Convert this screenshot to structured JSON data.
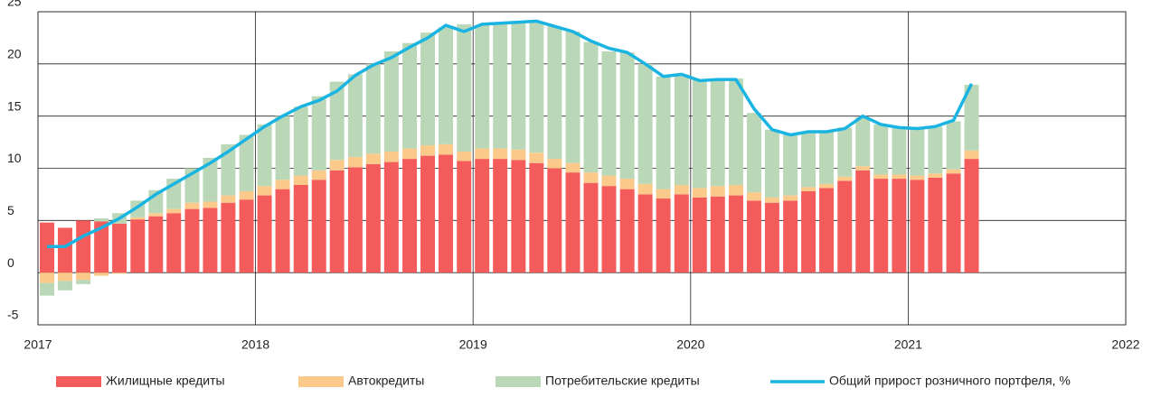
{
  "chart_data": {
    "type": "bar",
    "stacked": true,
    "grid": true,
    "xlim": [
      2017,
      2022
    ],
    "xticks": [
      2017,
      2018,
      2019,
      2020,
      2021,
      2022
    ],
    "ylim": [
      -5,
      25
    ],
    "yticks": [
      -5,
      0,
      5,
      10,
      15,
      20,
      25
    ],
    "x": [
      2017,
      2017.083,
      2017.167,
      2017.25,
      2017.333,
      2017.417,
      2017.5,
      2017.583,
      2017.667,
      2017.75,
      2017.833,
      2017.917,
      2018,
      2018.083,
      2018.167,
      2018.25,
      2018.333,
      2018.417,
      2018.5,
      2018.583,
      2018.667,
      2018.75,
      2018.833,
      2018.917,
      2019,
      2019.083,
      2019.167,
      2019.25,
      2019.333,
      2019.417,
      2019.5,
      2019.583,
      2019.667,
      2019.75,
      2019.833,
      2019.917,
      2020,
      2020.083,
      2020.167,
      2020.25,
      2020.333,
      2020.417,
      2020.5,
      2020.583,
      2020.667,
      2020.75,
      2020.833,
      2020.917,
      2021,
      2021.083,
      2021.167,
      2021.25
    ],
    "series": [
      {
        "name": "Жилищные кредиты",
        "color": "#f45b5b",
        "values": [
          4.8,
          4.3,
          5.0,
          4.9,
          4.7,
          5.1,
          5.4,
          5.7,
          6.1,
          6.2,
          6.7,
          7.0,
          7.4,
          8.0,
          8.4,
          8.9,
          9.8,
          10.1,
          10.4,
          10.6,
          10.9,
          11.2,
          11.3,
          10.7,
          10.9,
          10.9,
          10.8,
          10.5,
          10.0,
          9.6,
          8.6,
          8.3,
          8.0,
          7.5,
          7.1,
          7.5,
          7.2,
          7.3,
          7.4,
          6.9,
          6.7,
          6.9,
          7.8,
          8.1,
          8.8,
          9.8,
          9.0,
          9.0,
          8.9,
          9.1,
          9.5,
          10.9
        ]
      },
      {
        "name": "Автокредиты",
        "color": "#fbca8b",
        "values": [
          -1.0,
          -0.8,
          -0.7,
          -0.3,
          -0.1,
          0.2,
          0.3,
          0.4,
          0.6,
          0.6,
          0.7,
          0.8,
          0.9,
          0.9,
          0.9,
          0.9,
          1.0,
          1.0,
          1.0,
          1.0,
          1.0,
          1.0,
          1.0,
          0.9,
          1.0,
          1.0,
          1.0,
          1.0,
          0.9,
          0.9,
          1.0,
          1.0,
          1.0,
          1.0,
          0.9,
          0.9,
          0.9,
          1.0,
          1.0,
          0.8,
          0.5,
          0.5,
          0.4,
          0.4,
          0.4,
          0.4,
          0.4,
          0.4,
          0.4,
          0.4,
          0.4,
          0.8
        ]
      },
      {
        "name": "Потребительские кредиты",
        "color": "#bad8b8",
        "values": [
          -1.2,
          -0.9,
          -0.4,
          0.3,
          1.0,
          1.6,
          2.2,
          2.9,
          3.3,
          4.2,
          4.9,
          5.4,
          5.9,
          6.1,
          6.6,
          7.1,
          7.5,
          7.9,
          8.6,
          9.6,
          10.1,
          10.8,
          11.2,
          12.2,
          11.8,
          12.0,
          12.1,
          12.5,
          12.7,
          12.6,
          12.5,
          11.9,
          12.1,
          11.5,
          10.8,
          10.6,
          10.4,
          10.2,
          10.2,
          7.6,
          6.5,
          5.9,
          5.2,
          5.0,
          4.7,
          4.7,
          4.8,
          4.5,
          4.5,
          4.5,
          4.6,
          6.3
        ]
      },
      {
        "name": "Общий прирост розничного портфеля, %",
        "color": "#1ab4e3",
        "type": "line",
        "values": [
          2.5,
          2.5,
          3.5,
          4.3,
          5.2,
          6.3,
          7.5,
          8.5,
          9.5,
          10.5,
          11.6,
          12.8,
          14.0,
          15.0,
          15.9,
          16.5,
          17.4,
          18.9,
          19.9,
          20.6,
          21.6,
          22.5,
          23.7,
          23.1,
          23.8,
          23.9,
          24.0,
          24.1,
          23.6,
          23.1,
          22.2,
          21.5,
          21.1,
          20.0,
          18.8,
          19.0,
          18.4,
          18.5,
          18.5,
          15.7,
          13.7,
          13.2,
          13.5,
          13.5,
          13.8,
          15.0,
          14.2,
          13.9,
          13.8,
          14.0,
          14.6,
          18.1
        ]
      }
    ]
  }
}
